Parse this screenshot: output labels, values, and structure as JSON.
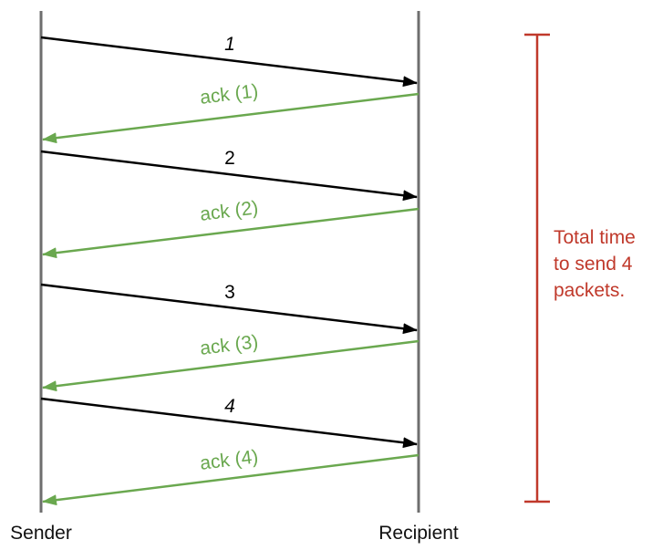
{
  "participants": {
    "sender": "Sender",
    "recipient": "Recipient"
  },
  "messages": [
    {
      "packet": "1",
      "ack": "ack (1)"
    },
    {
      "packet": "2",
      "ack": "ack (2)"
    },
    {
      "packet": "3",
      "ack": "ack (3)"
    },
    {
      "packet": "4",
      "ack": "ack (4)"
    }
  ],
  "bracket_note": {
    "line1": "Total time",
    "line2": "to send 4",
    "line3": "packets."
  },
  "colors": {
    "lifeline": "#6e6e6e",
    "packet_arrow": "#000000",
    "ack_arrow": "#6aa84f",
    "bracket": "#c0392b"
  }
}
